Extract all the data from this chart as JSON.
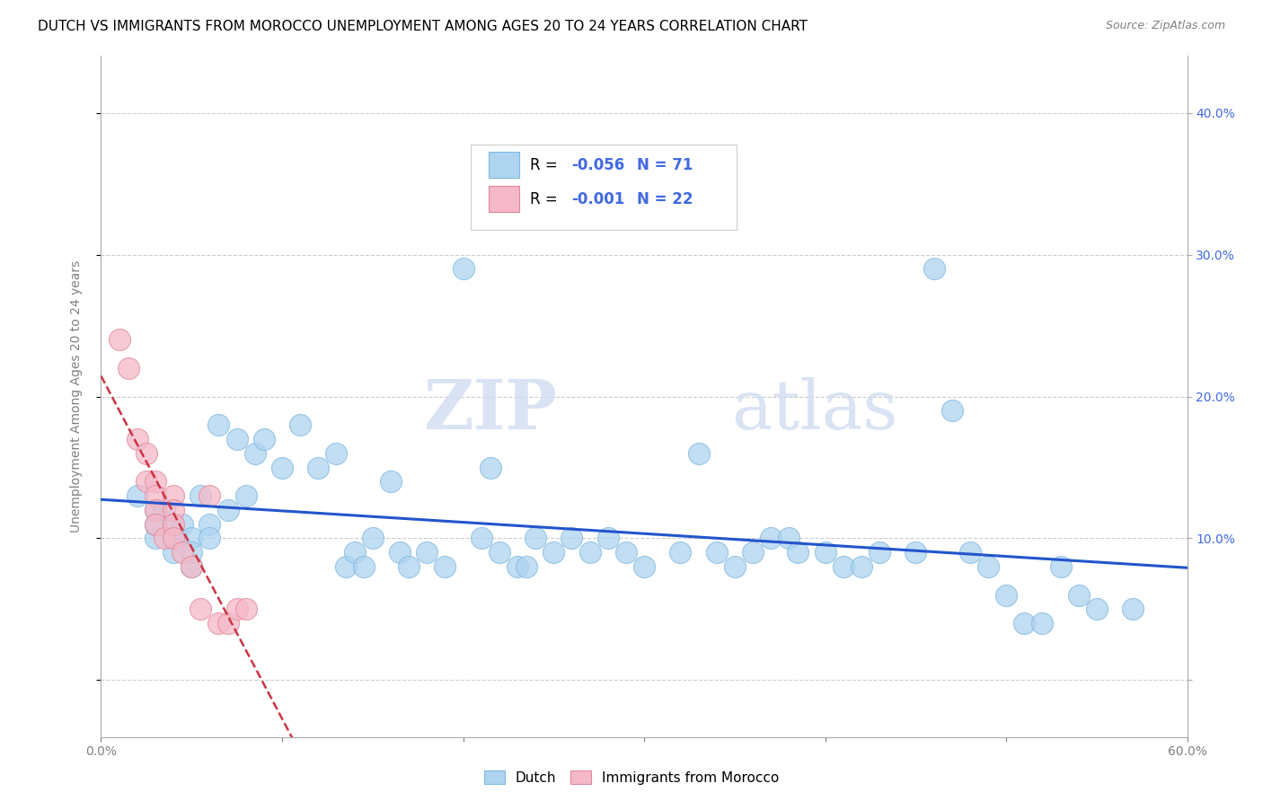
{
  "title": "DUTCH VS IMMIGRANTS FROM MOROCCO UNEMPLOYMENT AMONG AGES 20 TO 24 YEARS CORRELATION CHART",
  "source": "Source: ZipAtlas.com",
  "ylabel": "Unemployment Among Ages 20 to 24 years",
  "xmin": 0.0,
  "xmax": 0.6,
  "ymin": -0.04,
  "ymax": 0.44,
  "yticks": [
    0.0,
    0.1,
    0.2,
    0.3,
    0.4
  ],
  "dutch_R": -0.056,
  "dutch_N": 71,
  "morocco_R": -0.001,
  "morocco_N": 22,
  "dutch_color": "#aed4f0",
  "dutch_edge": "#7fb8e0",
  "morocco_color": "#f5b8c8",
  "morocco_edge": "#e08898",
  "trend_dutch_color": "#2255cc",
  "trend_morocco_color": "#cc3344",
  "background_color": "#ffffff",
  "legend_text_color": "#4169E1",
  "dutch_x": [
    0.02,
    0.03,
    0.03,
    0.03,
    0.035,
    0.04,
    0.04,
    0.04,
    0.045,
    0.05,
    0.05,
    0.05,
    0.055,
    0.06,
    0.06,
    0.065,
    0.07,
    0.075,
    0.08,
    0.085,
    0.09,
    0.1,
    0.11,
    0.12,
    0.13,
    0.135,
    0.14,
    0.145,
    0.15,
    0.16,
    0.165,
    0.17,
    0.18,
    0.19,
    0.2,
    0.21,
    0.215,
    0.22,
    0.23,
    0.235,
    0.24,
    0.25,
    0.26,
    0.27,
    0.28,
    0.29,
    0.3,
    0.32,
    0.33,
    0.34,
    0.35,
    0.36,
    0.37,
    0.38,
    0.385,
    0.4,
    0.41,
    0.42,
    0.43,
    0.45,
    0.46,
    0.47,
    0.48,
    0.49,
    0.5,
    0.51,
    0.52,
    0.53,
    0.54,
    0.55,
    0.57
  ],
  "dutch_y": [
    0.13,
    0.12,
    0.1,
    0.11,
    0.12,
    0.11,
    0.1,
    0.09,
    0.11,
    0.1,
    0.09,
    0.08,
    0.13,
    0.11,
    0.1,
    0.18,
    0.12,
    0.17,
    0.13,
    0.16,
    0.17,
    0.15,
    0.18,
    0.15,
    0.16,
    0.08,
    0.09,
    0.08,
    0.1,
    0.14,
    0.09,
    0.08,
    0.09,
    0.08,
    0.29,
    0.1,
    0.15,
    0.09,
    0.08,
    0.08,
    0.1,
    0.09,
    0.1,
    0.09,
    0.1,
    0.09,
    0.08,
    0.09,
    0.16,
    0.09,
    0.08,
    0.09,
    0.1,
    0.1,
    0.09,
    0.09,
    0.08,
    0.08,
    0.09,
    0.09,
    0.29,
    0.19,
    0.09,
    0.08,
    0.06,
    0.04,
    0.04,
    0.08,
    0.06,
    0.05,
    0.05
  ],
  "morocco_x": [
    0.01,
    0.015,
    0.02,
    0.025,
    0.025,
    0.03,
    0.03,
    0.03,
    0.03,
    0.035,
    0.04,
    0.04,
    0.04,
    0.04,
    0.045,
    0.05,
    0.055,
    0.06,
    0.065,
    0.07,
    0.075,
    0.08
  ],
  "morocco_y": [
    0.24,
    0.22,
    0.17,
    0.16,
    0.14,
    0.14,
    0.13,
    0.12,
    0.11,
    0.1,
    0.13,
    0.12,
    0.11,
    0.1,
    0.09,
    0.08,
    0.05,
    0.13,
    0.04,
    0.04,
    0.05,
    0.05
  ],
  "watermark_text": "ZIPatlas",
  "title_fontsize": 11,
  "axis_fontsize": 10,
  "tick_fontsize": 10,
  "legend_fontsize": 12
}
